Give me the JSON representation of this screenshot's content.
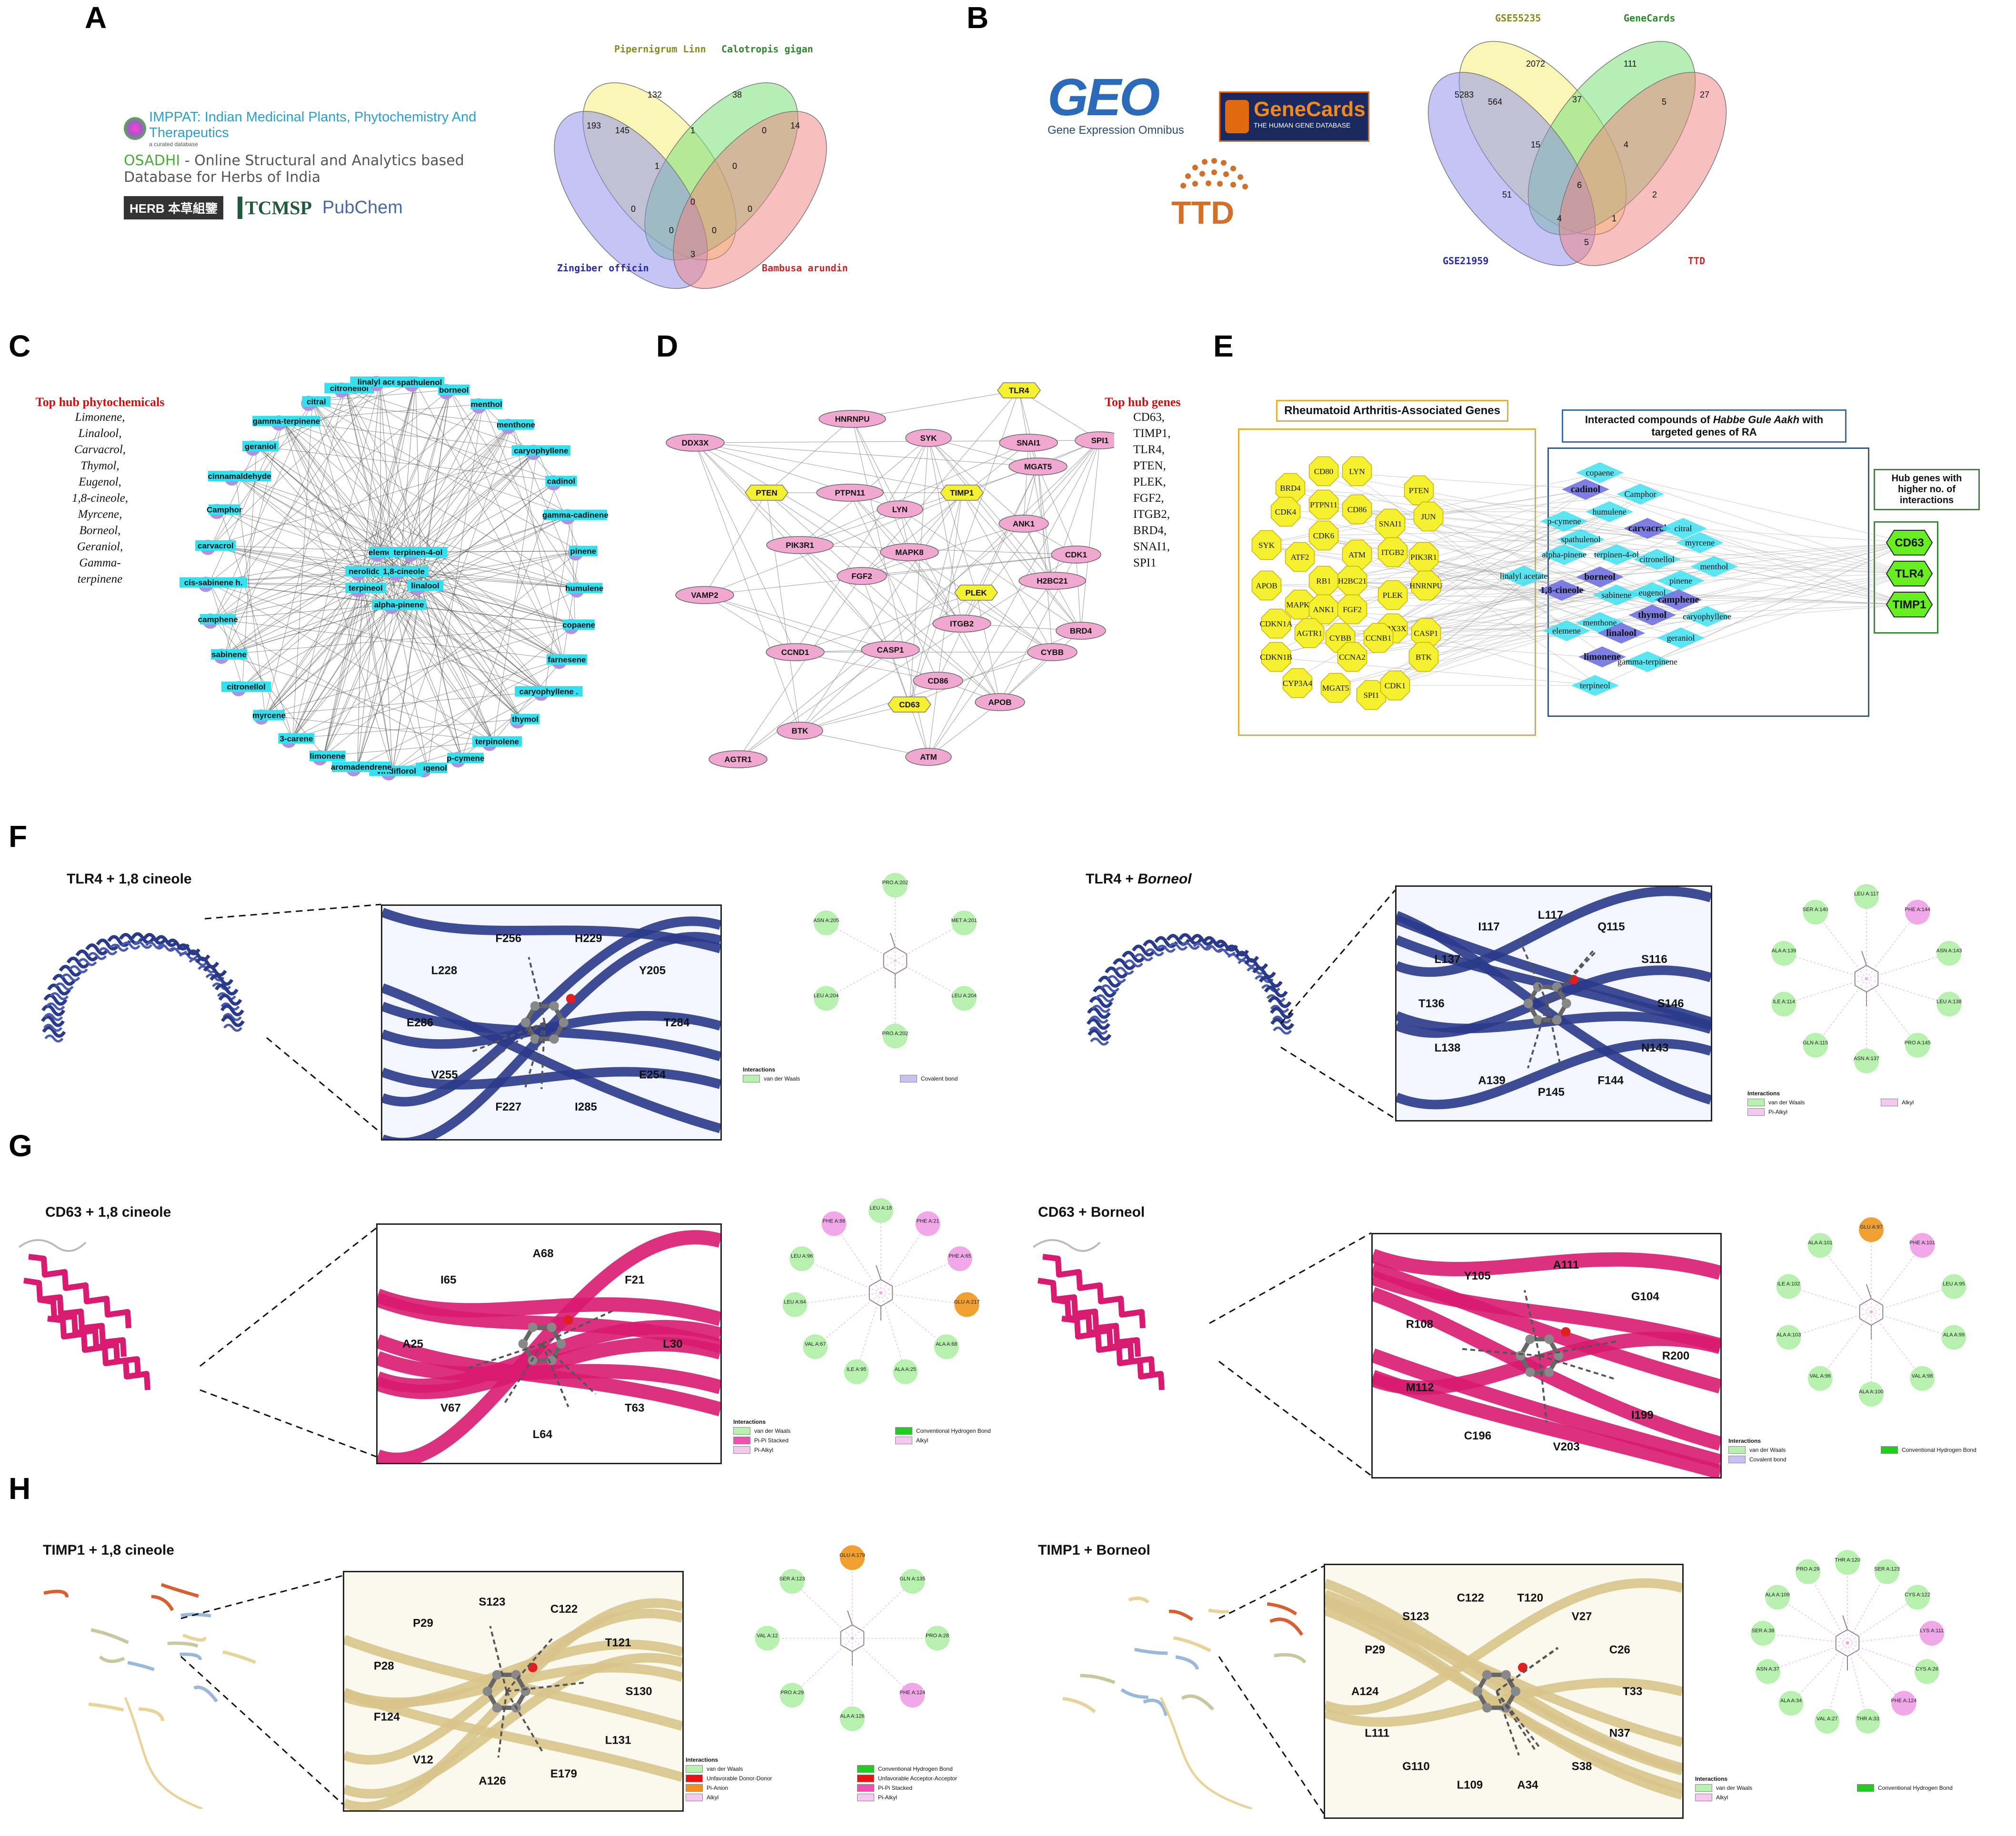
{
  "panels": {
    "A": {
      "letter": "A"
    },
    "B": {
      "letter": "B"
    },
    "C": {
      "letter": "C"
    },
    "D": {
      "letter": "D"
    },
    "E": {
      "letter": "E"
    },
    "F": {
      "letter": "F"
    },
    "G": {
      "letter": "G"
    },
    "H": {
      "letter": "H"
    }
  },
  "panelA": {
    "db_lines": {
      "impat": "IMPPAT: Indian Medicinal Plants, Phytochemistry And Therapeutics",
      "impat_sub": "a curated database",
      "osadhi_prefix": "OSADHI",
      "osadhi_rest": " - Online Structural and Analytics based",
      "osadhi_line2": "Database for Herbs of India",
      "herb": "HERB 本草組鑒",
      "tcmsp": "TCMSP",
      "pubchem": "PubChem"
    },
    "venn": {
      "sets": [
        "Pipernigrum Linn",
        "Calotropis gigan",
        "Zingiber officin",
        "Bambusa arundin"
      ],
      "colors": [
        "#f5f07a",
        "#7ae07a",
        "#8a8af0",
        "#f08080"
      ],
      "values": [
        "132",
        "38",
        "193",
        "14",
        "145",
        "1",
        "0",
        "1",
        "0",
        "0",
        "0",
        "0",
        "0",
        "3",
        "0"
      ]
    }
  },
  "panelB": {
    "logos": {
      "geo": "GEO",
      "geo_sub": "Gene Expression Omnibus",
      "genecards": "GeneCards",
      "genecards_sub": "THE HUMAN GENE DATABASE",
      "ttd": "TTD"
    },
    "venn": {
      "sets": [
        "GSE55235",
        "GeneCards",
        "GSE21959",
        "TTD"
      ],
      "values": [
        "2072",
        "111",
        "5283",
        "27",
        "564",
        "37",
        "5",
        "15",
        "4",
        "6",
        "51",
        "2",
        "4",
        "1",
        "5"
      ]
    }
  },
  "panelC": {
    "hub_title": "Top hub phytochemicals",
    "hub_list": [
      "Limonene,",
      "Linalool,",
      "Carvacrol,",
      "Thymol,",
      "Eugenol,",
      "1,8-cineole,",
      "Myrcene,",
      "Borneol,",
      "Geraniol,",
      "Gamma-",
      "terpinene"
    ],
    "outer_nodes": [
      "borneol",
      "menthol",
      "menthone",
      "caryophyllene",
      "cadinol",
      "gamma-cadinene",
      "pinene",
      "humulene",
      "copaene",
      "farnesene",
      "caryophyllene .",
      "thymol",
      "terpinolene",
      "p-cymene",
      "eugenol",
      "viridiflorol",
      "aromadendrene",
      "limonene",
      "3-carene",
      "myrcene",
      "citronellol",
      "sabinene",
      "camphene",
      "cis-sabinene h.",
      "carvacrol",
      "Camphor",
      "cinnamaldehyde",
      "geraniol",
      "gamma-terpinene",
      "citral",
      "citronellol",
      "linalyl acetate",
      "spathulenol"
    ],
    "inner_nodes": [
      "elemene",
      "terpinen-4-ol",
      "nerolidol",
      "1,8-cineole",
      "terpineol",
      "linalool",
      "alpha-pinene"
    ]
  },
  "panelD": {
    "hub_title": "Top hub genes",
    "hub_list": [
      "CD63,",
      "TIMP1,",
      "TLR4,",
      "PTEN,",
      "PLEK,",
      "FGF2,",
      "ITGB2,",
      "BRD4,",
      "SNAI1,",
      "SPI1"
    ],
    "nodes": [
      {
        "label": "TLR4",
        "hub": true
      },
      {
        "label": "HNRNPU",
        "hub": false
      },
      {
        "label": "SYK",
        "hub": false
      },
      {
        "label": "SNAI1",
        "hub": false
      },
      {
        "label": "SPI1",
        "hub": false
      },
      {
        "label": "DDX3X",
        "hub": false
      },
      {
        "label": "MGAT5",
        "hub": false
      },
      {
        "label": "PTEN",
        "hub": true
      },
      {
        "label": "PTPN11",
        "hub": false
      },
      {
        "label": "TIMP1",
        "hub": true
      },
      {
        "label": "LYN",
        "hub": false
      },
      {
        "label": "ANK1",
        "hub": false
      },
      {
        "label": "PIK3R1",
        "hub": false
      },
      {
        "label": "MAPK8",
        "hub": false
      },
      {
        "label": "CDK1",
        "hub": false
      },
      {
        "label": "FGF2",
        "hub": false
      },
      {
        "label": "H2BC21",
        "hub": false
      },
      {
        "label": "VAMP2",
        "hub": false
      },
      {
        "label": "PLEK",
        "hub": true
      },
      {
        "label": "ITGB2",
        "hub": false
      },
      {
        "label": "BRD4",
        "hub": false
      },
      {
        "label": "CCND1",
        "hub": false
      },
      {
        "label": "CASP1",
        "hub": false
      },
      {
        "label": "CYBB",
        "hub": false
      },
      {
        "label": "CD86",
        "hub": false
      },
      {
        "label": "CD63",
        "hub": true
      },
      {
        "label": "APOB",
        "hub": false
      },
      {
        "label": "BTK",
        "hub": false
      },
      {
        "label": "AGTR1",
        "hub": false
      },
      {
        "label": "ATM",
        "hub": false
      }
    ]
  },
  "panelE": {
    "genes_title": "Rheumatoid Arthritis-Associated Genes",
    "compounds_title_pre": "Interacted compounds of ",
    "compounds_title_em": "Habbe Gule Aakh",
    "compounds_title_post": " with targeted genes of RA",
    "hub_title": "Hub genes with higher no. of interactions",
    "genes": [
      "CD80",
      "LYN",
      "BRD4",
      "PTEN",
      "CDK4",
      "PTPN11",
      "CD86",
      "JUN",
      "CDK6",
      "SNAI1",
      "SYK",
      "ATF2",
      "ATM",
      "ITGB2",
      "PIK3R1",
      "APOB",
      "RB1",
      "H2BC21",
      "HNRNPU",
      "MAPK8",
      "PLEK",
      "ANK1",
      "FGF2",
      "CDKN1A",
      "AGTR1",
      "DDX3X",
      "CASP1",
      "CYBB",
      "CCNB1",
      "CDKN1B",
      "CCNA2",
      "BTK",
      "CYP3A4",
      "MGAT5",
      "SPI1",
      "CDK1"
    ],
    "compounds": [
      "copaene",
      "cadinol",
      "Camphor",
      "humulene",
      "p-cymene",
      "carvacrol",
      "citral",
      "spathulenol",
      "myrcene",
      "terpinen-4-ol",
      "alpha-pinene",
      "citronellol",
      "menthol",
      "linalyl acetate",
      "borneol",
      "pinene",
      "1,8-cineole",
      "sabinene",
      "eugenol",
      "camphene",
      "thymol",
      "caryophyllene",
      "menthone",
      "elemene",
      "linalool",
      "geraniol",
      "limonene",
      "gamma-terpinene",
      "terpineol"
    ],
    "hub_genes": [
      "CD63",
      "TLR4",
      "TIMP1"
    ]
  },
  "panelF": {
    "left_title": "TLR4 + 1,8 cineole",
    "right_title_pre": "TLR4 + ",
    "right_title_em": "Borneol",
    "left_residues": [
      "T284",
      "E254",
      "I285",
      "F227",
      "V255",
      "E286",
      "L228",
      "F256",
      "H229",
      "Y205"
    ],
    "right_residues": [
      "S146",
      "N143",
      "F144",
      "P145",
      "A139",
      "L138",
      "T136",
      "L137",
      "I117",
      "L117",
      "Q115",
      "S116"
    ],
    "left_2d": [
      "PRO A:202",
      "MET A:201",
      "LEU A:204",
      "PRO A:202",
      "LEU A:204",
      "ASN A:205"
    ],
    "right_2d": [
      "LEU A:117",
      "PHE A:144",
      "ASN A:143",
      "LEU A:138",
      "PRO A:145",
      "ASN A:137",
      "GLN A:115",
      "ILE A:114",
      "ALA A:139",
      "SER A:140"
    ],
    "left_legend": {
      "title": "Interactions",
      "items": [
        "van der Waals",
        "Covalent bond"
      ]
    },
    "right_legend": {
      "title": "Interactions",
      "items": [
        "van der Waals",
        "Alkyl",
        "Pi-Alkyl"
      ]
    }
  },
  "panelG": {
    "left_title": "CD63 + 1,8 cineole",
    "right_title": "CD63 + Borneol",
    "left_residues": [
      "L30",
      "T63",
      "L64",
      "V67",
      "A25",
      "I65",
      "A68",
      "F21"
    ],
    "right_residues": [
      "R200",
      "I199",
      "V203",
      "C196",
      "M112",
      "R108",
      "Y105",
      "A111",
      "G104"
    ],
    "left_2d": [
      "LEU A:18",
      "PHE A:21",
      "PHE A:65",
      "GLU A:217",
      "ALA A:68",
      "ALA A:25",
      "ILE A:95",
      "VAL A:67",
      "LEU A:64",
      "LEU A:96",
      "PHE A:86"
    ],
    "right_2d": [
      "GLU A:97",
      "PHE A:101",
      "LEU A:95",
      "ALA A:99",
      "VAL A:98",
      "ALA A:100",
      "VAL A:96",
      "ALA A:103",
      "ILE A:102",
      "ALA A:101"
    ],
    "left_legend": {
      "title": "Interactions",
      "items": [
        "van der Waals",
        "Conventional Hydrogen Bond",
        "Pi-Pi Stacked",
        "Alkyl",
        "Pi-Alkyl"
      ]
    },
    "right_legend": {
      "title": "Interactions",
      "items": [
        "van der Waals",
        "Conventional Hydrogen Bond",
        "Covalent bond"
      ]
    }
  },
  "panelH": {
    "left_title": "TIMP1 + 1,8 cineole",
    "right_title": "TIMP1 + Borneol",
    "left_residues": [
      "S130",
      "L131",
      "E179",
      "A126",
      "V12",
      "F124",
      "P28",
      "P29",
      "S123",
      "C122",
      "T121"
    ],
    "right_residues": [
      "T33",
      "N37",
      "S38",
      "A34",
      "L109",
      "G110",
      "L111",
      "A124",
      "P29",
      "S123",
      "C122",
      "T120",
      "V27",
      "C26"
    ],
    "left_2d": [
      "GLU A:179",
      "GLN A:135",
      "PRO A:28",
      "PHE A:124",
      "ALA A:126",
      "PRO A:29",
      "VAL A:12",
      "SER A:123"
    ],
    "right_2d": [
      "THR A:120",
      "SER A:123",
      "CYS A:122",
      "LYS A:111",
      "CYS A:26",
      "PHE A:124",
      "THR A:33",
      "VAL A:27",
      "ALA A:34",
      "ASN A:37",
      "SER A:38",
      "ALA A:109",
      "PRO A:29"
    ],
    "left_legend": {
      "title": "Interactions",
      "items": [
        "van der Waals",
        "Conventional Hydrogen Bond",
        "Unfavorable Donor-Donor",
        "Unfavorable Acceptor-Acceptor",
        "Pi-Anion",
        "Pi-Pi Stacked",
        "Alkyl",
        "Pi-Alkyl"
      ]
    },
    "right_legend": {
      "title": "Interactions",
      "items": [
        "van der Waals",
        "Conventional Hydrogen Bond",
        "Alkyl"
      ]
    }
  },
  "colors": {
    "hub_red": "#d01010",
    "network_cyan": "#33e0f0",
    "network_purple": "#b090e0",
    "gene_yellow": "#f5f030",
    "gene_pink": "#f0a8d0",
    "hub_green": "#66ee22",
    "tlr4_blue": "#2a3a8a",
    "cd63_pink": "#d81b70",
    "timp1_tan": "#e8d49a"
  }
}
